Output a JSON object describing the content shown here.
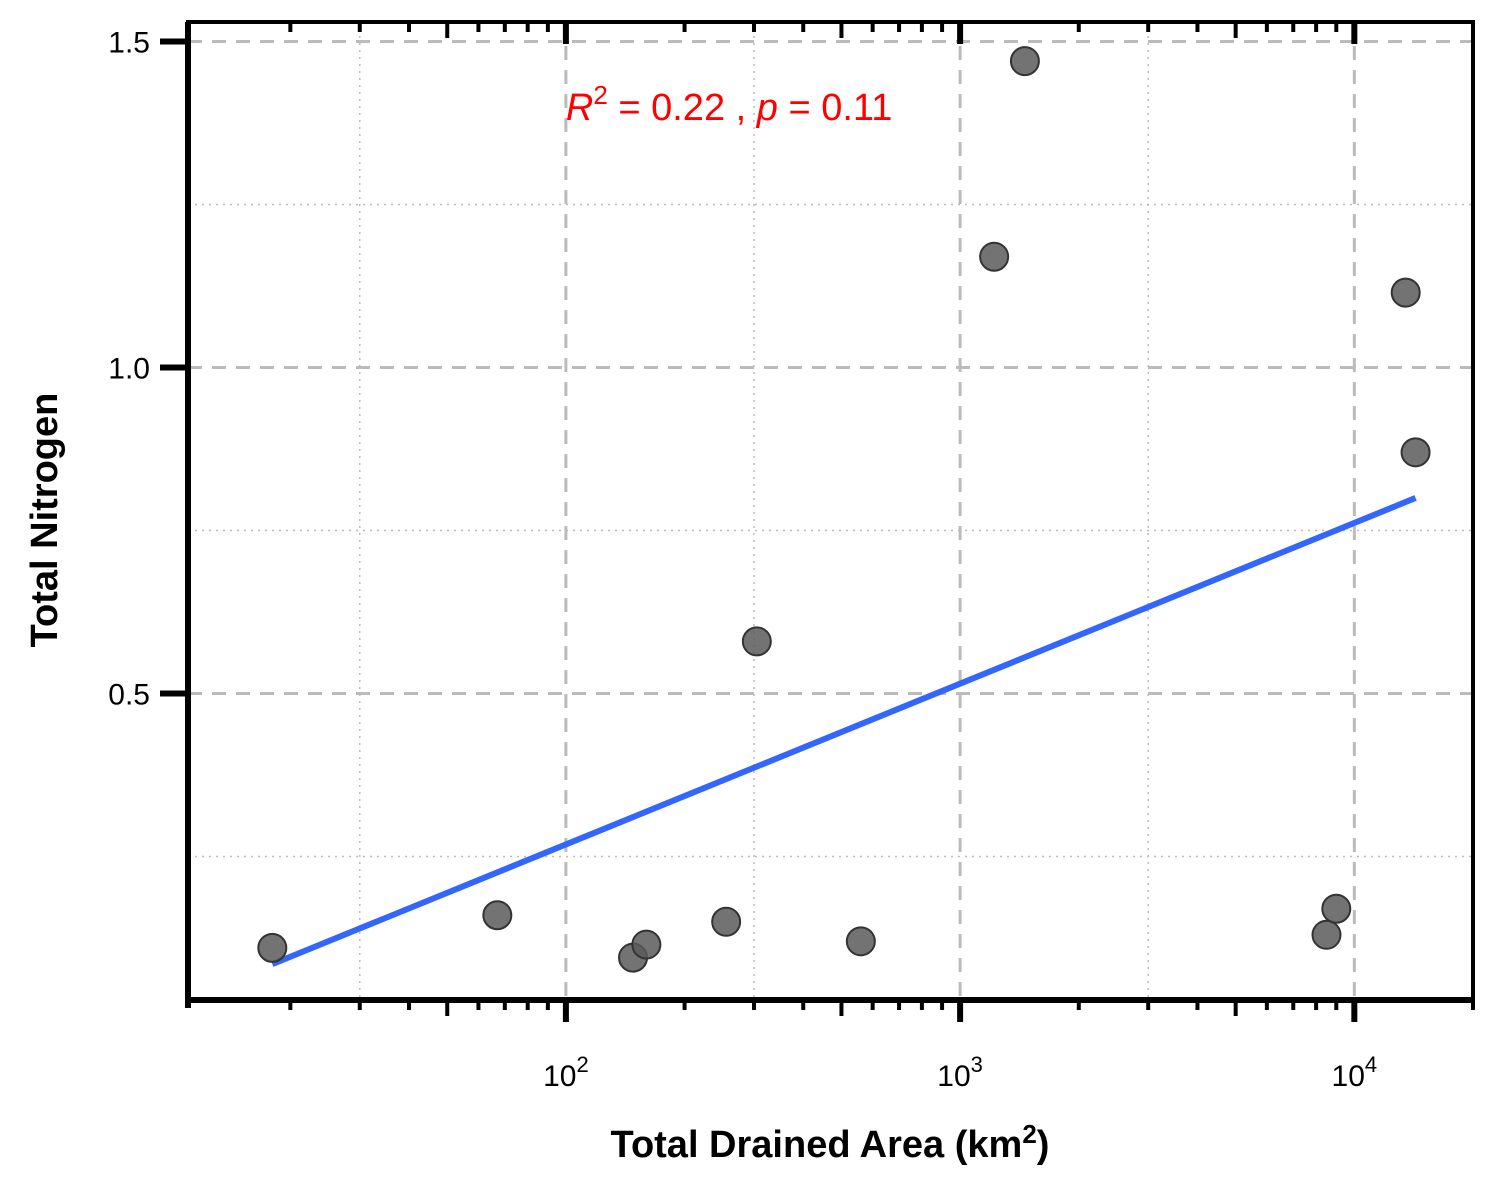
{
  "chart_data": {
    "type": "scatter",
    "title": "",
    "xlabel": "Total Drained Area (km",
    "xlabel_sup": "2",
    "xlabel_close": ")",
    "ylabel": "Total Nitrogen",
    "x_scale": "log",
    "xlim": [
      11,
      20000
    ],
    "ylim": [
      0.03,
      1.53
    ],
    "x_ticks": [
      {
        "value": 100,
        "base": "10",
        "exp": "2"
      },
      {
        "value": 1000,
        "base": "10",
        "exp": "3"
      },
      {
        "value": 10000,
        "base": "10",
        "exp": "4"
      }
    ],
    "y_ticks": [
      {
        "value": 0.5,
        "label": "0.5"
      },
      {
        "value": 1.0,
        "label": "1.0"
      },
      {
        "value": 1.5,
        "label": "1.5"
      }
    ],
    "grid": true,
    "legend": "none",
    "points": [
      {
        "x": 18,
        "y": 0.11
      },
      {
        "x": 67,
        "y": 0.16
      },
      {
        "x": 148,
        "y": 0.095
      },
      {
        "x": 160,
        "y": 0.115
      },
      {
        "x": 255,
        "y": 0.15
      },
      {
        "x": 305,
        "y": 0.58
      },
      {
        "x": 560,
        "y": 0.12
      },
      {
        "x": 1220,
        "y": 1.17
      },
      {
        "x": 1460,
        "y": 1.47
      },
      {
        "x": 8500,
        "y": 0.13
      },
      {
        "x": 9000,
        "y": 0.17
      },
      {
        "x": 13500,
        "y": 1.115
      },
      {
        "x": 14300,
        "y": 0.87
      }
    ],
    "fit_line": {
      "x": [
        18,
        14300
      ],
      "y": [
        0.085,
        0.8
      ]
    },
    "annotation": {
      "r_symbol": "R",
      "r_sup": "2",
      "r_text": " = 0.22 , ",
      "p_symbol": "p",
      "p_text": " = 0.11",
      "x": 100,
      "y": 1.38
    },
    "colors": {
      "points": "#5a5a5a",
      "fit_line": "#3366ff",
      "annotation": "#ff0000",
      "grid": "#bbbbbb"
    }
  }
}
